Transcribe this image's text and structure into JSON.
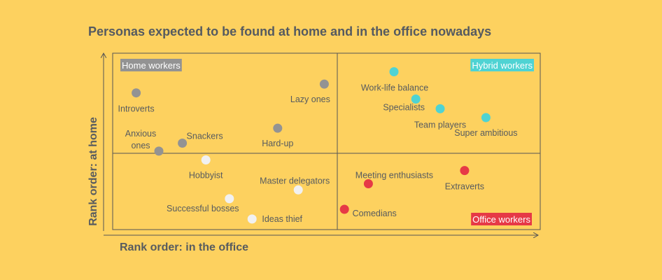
{
  "chart_data": {
    "type": "scatter",
    "title": "Personas expected to be found at home and in the office nowadays",
    "xlabel": "Rank order: in the office",
    "ylabel": "Rank order: at home",
    "xlim": [
      0,
      100
    ],
    "ylim": [
      0,
      100
    ],
    "grid": false,
    "colors": {
      "home": "#939393",
      "hybrid": "#4fd3d3",
      "office": "#e63946",
      "other": "#f1f1f1",
      "frame": "#555555",
      "text": "#575b5f"
    },
    "quadrant_labels": [
      {
        "text": "Home workers",
        "group": "home",
        "position": "top-left"
      },
      {
        "text": "Hybrid workers",
        "group": "hybrid",
        "position": "top-right"
      },
      {
        "text": "Office workers",
        "group": "office",
        "position": "bottom-right"
      }
    ],
    "points": [
      {
        "label": "Introverts",
        "x": 5.5,
        "y": 77.5,
        "group": "home"
      },
      {
        "label": "Lazy ones",
        "x": 49.5,
        "y": 82.5,
        "group": "home"
      },
      {
        "label": "Anxious\nones",
        "x": 10.8,
        "y": 44.5,
        "group": "home"
      },
      {
        "label": "Snackers",
        "x": 16.3,
        "y": 49.0,
        "group": "home"
      },
      {
        "label": "Hard-up",
        "x": 38.6,
        "y": 57.5,
        "group": "home"
      },
      {
        "label": "Work-life balance",
        "x": 65.8,
        "y": 89.5,
        "group": "hybrid"
      },
      {
        "label": "Specialists",
        "x": 70.9,
        "y": 74.0,
        "group": "hybrid"
      },
      {
        "label": "Team players",
        "x": 76.6,
        "y": 68.5,
        "group": "hybrid"
      },
      {
        "label": "Super ambitious",
        "x": 87.3,
        "y": 63.5,
        "group": "hybrid"
      },
      {
        "label": "Hobbyist",
        "x": 21.8,
        "y": 39.5,
        "group": "other"
      },
      {
        "label": "Master delegators",
        "x": 43.4,
        "y": 22.5,
        "group": "other"
      },
      {
        "label": "Successful bosses",
        "x": 27.3,
        "y": 17.5,
        "group": "other"
      },
      {
        "label": "Ideas thief",
        "x": 32.6,
        "y": 6.0,
        "group": "other"
      },
      {
        "label": "Meeting enthusiasts",
        "x": 59.8,
        "y": 26.0,
        "group": "office"
      },
      {
        "label": "Extraverts",
        "x": 82.3,
        "y": 33.5,
        "group": "office"
      },
      {
        "label": "Comedians",
        "x": 54.2,
        "y": 11.5,
        "group": "office"
      }
    ]
  }
}
